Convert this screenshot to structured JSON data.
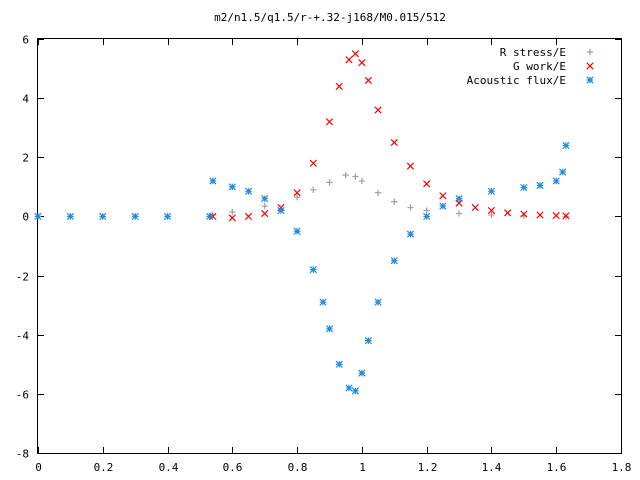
{
  "chart_data": {
    "type": "scatter",
    "title": "m2/n1.5/q1.5/r-+.32-j168/M0.015/512",
    "xlabel": "",
    "ylabel": "",
    "xlim": [
      0,
      1.8
    ],
    "ylim": [
      -8,
      6
    ],
    "grid": false,
    "legend_position": "top-right",
    "x_ticks": [
      "0",
      "0.2",
      "0.4",
      "0.6",
      "0.8",
      "1",
      "1.2",
      "1.4",
      "1.6",
      "1.8"
    ],
    "y_ticks": [
      "6",
      "4",
      "2",
      "0",
      "-2",
      "-4",
      "-6",
      "-8"
    ],
    "series": [
      {
        "name": "R stress/E",
        "marker": "plus",
        "color": "#a0a0a0",
        "x": [
          0.0,
          0.1,
          0.2,
          0.3,
          0.4,
          0.54,
          0.6,
          0.7,
          0.8,
          0.85,
          0.9,
          0.95,
          0.98,
          1.0,
          1.05,
          1.1,
          1.15,
          1.2,
          1.3,
          1.4,
          1.5,
          1.63
        ],
        "y": [
          0.0,
          0.0,
          0.0,
          0.0,
          0.0,
          0.05,
          0.15,
          0.35,
          0.65,
          0.9,
          1.15,
          1.4,
          1.35,
          1.2,
          0.8,
          0.5,
          0.3,
          0.2,
          0.1,
          0.05,
          0.02,
          0.0
        ]
      },
      {
        "name": "G work/E",
        "marker": "cross",
        "color": "#ff0000",
        "x": [
          0.54,
          0.6,
          0.65,
          0.7,
          0.75,
          0.8,
          0.85,
          0.9,
          0.93,
          0.96,
          0.98,
          1.0,
          1.02,
          1.05,
          1.1,
          1.15,
          1.2,
          1.25,
          1.3,
          1.35,
          1.4,
          1.45,
          1.5,
          1.55,
          1.6,
          1.63
        ],
        "y": [
          0.0,
          -0.05,
          0.0,
          0.1,
          0.3,
          0.8,
          1.8,
          3.2,
          4.4,
          5.3,
          5.5,
          5.2,
          4.6,
          3.6,
          2.5,
          1.7,
          1.1,
          0.7,
          0.45,
          0.3,
          0.2,
          0.12,
          0.08,
          0.05,
          0.03,
          0.02
        ]
      },
      {
        "name": "Acoustic flux/E",
        "marker": "star",
        "color": "#1e8ce0",
        "x": [
          0.0,
          0.1,
          0.2,
          0.3,
          0.4,
          0.53,
          0.54,
          0.6,
          0.65,
          0.7,
          0.75,
          0.8,
          0.85,
          0.88,
          0.9,
          0.93,
          0.96,
          0.98,
          1.0,
          1.02,
          1.05,
          1.1,
          1.15,
          1.2,
          1.25,
          1.3,
          1.4,
          1.5,
          1.55,
          1.6,
          1.62,
          1.63
        ],
        "y": [
          0.0,
          0.0,
          0.0,
          0.0,
          0.0,
          0.0,
          1.2,
          1.0,
          0.85,
          0.6,
          0.2,
          -0.5,
          -1.8,
          -2.9,
          -3.8,
          -5.0,
          -5.8,
          -5.9,
          -5.3,
          -4.2,
          -2.9,
          -1.5,
          -0.6,
          0.0,
          0.35,
          0.6,
          0.85,
          0.98,
          1.05,
          1.2,
          1.5,
          2.4
        ]
      }
    ]
  }
}
